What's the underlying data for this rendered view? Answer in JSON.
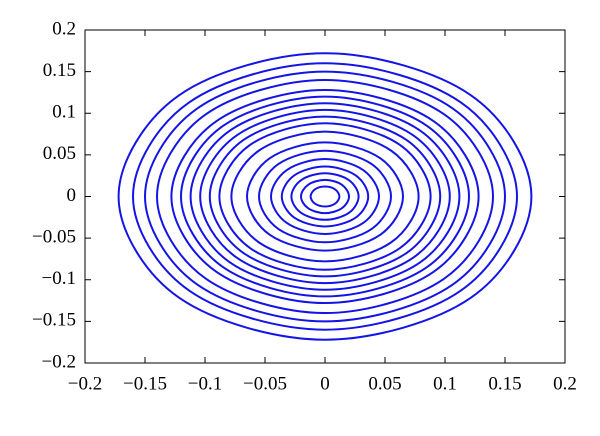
{
  "chart_data": {
    "type": "line",
    "color": "#1414e6",
    "xlim": [
      -0.2,
      0.2
    ],
    "ylim": [
      -0.2,
      0.2
    ],
    "xticks": [
      {
        "value": -0.2,
        "label": "−0.2"
      },
      {
        "value": -0.15,
        "label": "−0.15"
      },
      {
        "value": -0.1,
        "label": "−0.1"
      },
      {
        "value": -0.05,
        "label": "−0.05"
      },
      0,
      0.05,
      0.1,
      0.15,
      0.2
    ],
    "yticks": [
      {
        "value": -0.2,
        "label": "−0.2"
      },
      {
        "value": -0.15,
        "label": "−0.15"
      },
      {
        "value": -0.1,
        "label": "−0.1"
      },
      {
        "value": -0.05,
        "label": "−0.05"
      },
      0,
      0.05,
      0.1,
      0.15,
      0.2
    ],
    "series": [
      {
        "x": [
          0.012,
          0.0085,
          0,
          -0.0085,
          -0.012,
          -0.0085,
          0,
          0.0085,
          0.012
        ],
        "values": [
          0,
          0.0085,
          0.012,
          0.0085,
          0,
          -0.0085,
          -0.012,
          -0.0085,
          0
        ]
      },
      {
        "x": [
          0.02,
          0.0141,
          0,
          -0.0141,
          -0.02,
          -0.0141,
          0,
          0.0141,
          0.02
        ],
        "values": [
          0,
          0.0141,
          0.02,
          0.0141,
          0,
          -0.0141,
          -0.02,
          -0.0141,
          0
        ]
      },
      {
        "x": [
          0.028,
          0.0198,
          0,
          -0.0198,
          -0.028,
          -0.0198,
          0,
          0.0198,
          0.028
        ],
        "values": [
          0,
          0.0198,
          0.028,
          0.0198,
          0,
          -0.0198,
          -0.028,
          -0.0198,
          0
        ]
      },
      {
        "x": [
          0.036,
          0.0255,
          0,
          -0.0255,
          -0.036,
          -0.0255,
          0,
          0.0255,
          0.036
        ],
        "values": [
          0,
          0.0255,
          0.036,
          0.0255,
          0,
          -0.0255,
          -0.036,
          -0.0255,
          0
        ]
      },
      {
        "x": [
          0.045,
          0.0318,
          0,
          -0.0318,
          -0.045,
          -0.0318,
          0,
          0.0318,
          0.045
        ],
        "values": [
          0,
          0.0318,
          0.045,
          0.0318,
          0,
          -0.0318,
          -0.045,
          -0.0318,
          0
        ]
      },
      {
        "x": [
          0.055,
          0.0389,
          0,
          -0.0389,
          -0.055,
          -0.0389,
          0,
          0.0389,
          0.055
        ],
        "values": [
          0,
          0.0389,
          0.055,
          0.0389,
          0,
          -0.0389,
          -0.055,
          -0.0389,
          0
        ]
      },
      {
        "x": [
          0.065,
          0.046,
          0,
          -0.046,
          -0.065,
          -0.046,
          0,
          0.046,
          0.065
        ],
        "values": [
          0,
          0.046,
          0.065,
          0.046,
          0,
          -0.046,
          -0.065,
          -0.046,
          0
        ]
      },
      {
        "x": [
          0.078,
          0.0551,
          0,
          -0.0551,
          -0.078,
          -0.0551,
          0,
          0.0551,
          0.078
        ],
        "values": [
          0,
          0.0551,
          0.078,
          0.0551,
          0,
          -0.0551,
          -0.078,
          -0.0551,
          0
        ]
      },
      {
        "x": [
          0.088,
          0.0622,
          0,
          -0.0622,
          -0.088,
          -0.0622,
          0,
          0.0622,
          0.088
        ],
        "values": [
          0,
          0.0622,
          0.088,
          0.0622,
          0,
          -0.0622,
          -0.088,
          -0.0622,
          0
        ]
      },
      {
        "x": [
          0.096,
          0.0679,
          0,
          -0.0679,
          -0.096,
          -0.0679,
          0,
          0.0679,
          0.096
        ],
        "values": [
          0,
          0.0679,
          0.096,
          0.0679,
          0,
          -0.0679,
          -0.096,
          -0.0679,
          0
        ]
      },
      {
        "x": [
          0.104,
          0.0735,
          0,
          -0.0735,
          -0.104,
          -0.0735,
          0,
          0.0735,
          0.104
        ],
        "values": [
          0,
          0.0735,
          0.104,
          0.0735,
          0,
          -0.0735,
          -0.104,
          -0.0735,
          0
        ]
      },
      {
        "x": [
          0.112,
          0.0792,
          0,
          -0.0792,
          -0.112,
          -0.0792,
          0,
          0.0792,
          0.112
        ],
        "values": [
          0,
          0.0792,
          0.112,
          0.0792,
          0,
          -0.0792,
          -0.112,
          -0.0792,
          0
        ]
      },
      {
        "x": [
          0.12,
          0.0849,
          0,
          -0.0849,
          -0.12,
          -0.0849,
          0,
          0.0849,
          0.12
        ],
        "values": [
          0,
          0.0849,
          0.12,
          0.0849,
          0,
          -0.0849,
          -0.12,
          -0.0849,
          0
        ]
      },
      {
        "x": [
          0.128,
          0.0905,
          0,
          -0.0905,
          -0.128,
          -0.0905,
          0,
          0.0905,
          0.128
        ],
        "values": [
          0,
          0.0905,
          0.128,
          0.0905,
          0,
          -0.0905,
          -0.128,
          -0.0905,
          0
        ]
      },
      {
        "x": [
          0.14,
          0.099,
          0,
          -0.099,
          -0.14,
          -0.099,
          0,
          0.099,
          0.14
        ],
        "values": [
          0,
          0.099,
          0.14,
          0.099,
          0,
          -0.099,
          -0.14,
          -0.099,
          0
        ]
      },
      {
        "x": [
          0.15,
          0.1061,
          0,
          -0.1061,
          -0.15,
          -0.1061,
          0,
          0.1061,
          0.15
        ],
        "values": [
          0,
          0.1061,
          0.15,
          0.1061,
          0,
          -0.1061,
          -0.15,
          -0.1061,
          0
        ]
      },
      {
        "x": [
          0.16,
          0.1131,
          0,
          -0.1131,
          -0.16,
          -0.1131,
          0,
          0.1131,
          0.16
        ],
        "values": [
          0,
          0.1131,
          0.16,
          0.1131,
          0,
          -0.1131,
          -0.16,
          -0.1131,
          0
        ]
      },
      {
        "x": [
          0.172,
          0.1216,
          0,
          -0.1216,
          -0.172,
          -0.1216,
          0,
          0.1216,
          0.172
        ],
        "values": [
          0,
          0.1216,
          0.172,
          0.1216,
          0,
          -0.1216,
          -0.172,
          -0.1216,
          0
        ]
      }
    ]
  }
}
